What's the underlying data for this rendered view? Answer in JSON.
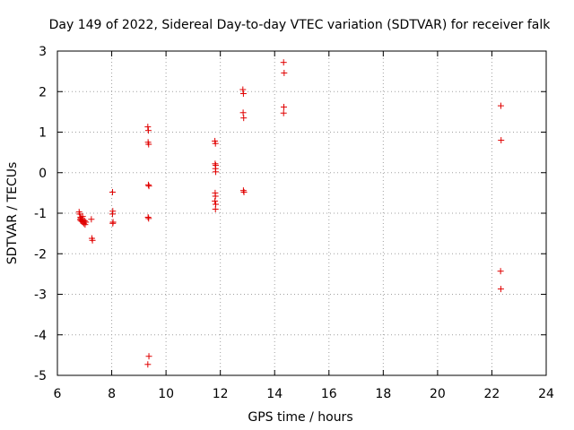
{
  "chart_data": {
    "type": "scatter",
    "title": "Day 149 of 2022, Sidereal Day-to-day VTEC variation (SDTVAR) for receiver falk",
    "xlabel": "GPS time / hours",
    "ylabel": "SDTVAR / TECUs",
    "xlim": [
      6,
      24
    ],
    "ylim": [
      -5,
      3
    ],
    "xticks": [
      "6",
      "8",
      "10",
      "12",
      "14",
      "16",
      "18",
      "20",
      "22",
      "24"
    ],
    "yticks": [
      "3",
      "2",
      "1",
      "0",
      "-1",
      "-2",
      "-3",
      "-4",
      "-5"
    ],
    "grid": true,
    "marker": "+",
    "color": "#e00000",
    "series": [
      {
        "name": "SDTVAR",
        "points": [
          [
            6.8,
            -0.97
          ],
          [
            6.82,
            -1.02
          ],
          [
            6.85,
            -1.1
          ],
          [
            6.86,
            -1.18
          ],
          [
            6.88,
            -1.13
          ],
          [
            6.9,
            -1.2
          ],
          [
            6.92,
            -1.16
          ],
          [
            6.95,
            -1.22
          ],
          [
            6.97,
            -1.25
          ],
          [
            7.0,
            -1.19
          ],
          [
            7.02,
            -1.28
          ],
          [
            7.05,
            -1.22
          ],
          [
            6.84,
            -1.15
          ],
          [
            6.93,
            -1.08
          ],
          [
            7.25,
            -1.15
          ],
          [
            7.27,
            -1.62
          ],
          [
            7.29,
            -1.67
          ],
          [
            8.03,
            -0.48
          ],
          [
            8.04,
            -0.95
          ],
          [
            8.03,
            -1.02
          ],
          [
            8.05,
            -1.22
          ],
          [
            8.04,
            -1.25
          ],
          [
            9.33,
            1.13
          ],
          [
            9.35,
            1.04
          ],
          [
            9.34,
            0.75
          ],
          [
            9.36,
            0.7
          ],
          [
            9.35,
            -0.3
          ],
          [
            9.37,
            -0.33
          ],
          [
            9.34,
            -1.1
          ],
          [
            9.36,
            -1.13
          ],
          [
            9.37,
            -4.53
          ],
          [
            9.33,
            -4.73
          ],
          [
            11.8,
            0.78
          ],
          [
            11.82,
            0.72
          ],
          [
            11.81,
            0.22
          ],
          [
            11.83,
            0.18
          ],
          [
            11.82,
            0.1
          ],
          [
            11.83,
            0.02
          ],
          [
            11.81,
            -0.5
          ],
          [
            11.82,
            -0.58
          ],
          [
            11.8,
            -0.7
          ],
          [
            11.83,
            -0.78
          ],
          [
            11.82,
            -0.9
          ],
          [
            12.83,
            2.05
          ],
          [
            12.85,
            1.95
          ],
          [
            12.84,
            1.48
          ],
          [
            12.86,
            1.35
          ],
          [
            12.85,
            -0.44
          ],
          [
            12.87,
            -0.48
          ],
          [
            14.33,
            2.72
          ],
          [
            14.35,
            2.46
          ],
          [
            14.34,
            1.62
          ],
          [
            14.33,
            1.47
          ],
          [
            22.33,
            1.65
          ],
          [
            22.34,
            0.8
          ],
          [
            22.32,
            -2.43
          ],
          [
            22.33,
            -2.87
          ]
        ]
      }
    ]
  }
}
